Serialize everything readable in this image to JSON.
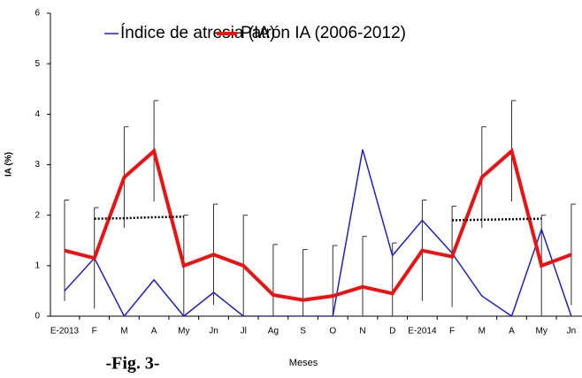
{
  "chart_data": {
    "type": "line",
    "ylabel": "IA (%)",
    "xlabel": "Meses",
    "figure_label": "-Fig. 3-",
    "categories": [
      "E-2013",
      "F",
      "M",
      "A",
      "My",
      "Jn",
      "Jl",
      "Ag",
      "S",
      "O",
      "N",
      "D",
      "E-2014",
      "F",
      "M",
      "A",
      "My",
      "Jn"
    ],
    "series": [
      {
        "name": "Índice de atresia (IA)",
        "color": "#1f1fd0",
        "width": 1.5,
        "values": [
          0.5,
          1.15,
          0,
          0.72,
          0,
          0.47,
          0,
          0,
          0,
          0,
          3.3,
          1.2,
          1.9,
          1.25,
          0.4,
          0,
          1.72,
          0
        ]
      },
      {
        "name": "Patrón IA (2006-2012)",
        "color": "#ee1111",
        "width": 4,
        "values": [
          1.3,
          1.15,
          2.75,
          3.27,
          1.0,
          1.22,
          1.0,
          0.42,
          0.32,
          0.4,
          0.58,
          0.45,
          1.3,
          1.18,
          2.75,
          3.27,
          1.0,
          1.22
        ],
        "errors": [
          1,
          1,
          1,
          1,
          1,
          1,
          1,
          1,
          1,
          1,
          1,
          1,
          1,
          1,
          1,
          1,
          1,
          1
        ]
      }
    ],
    "trend_lines": [
      {
        "color": "#000000",
        "values": [
          null,
          1.93,
          1.94,
          1.96,
          1.97,
          null,
          null,
          null,
          null,
          null,
          null,
          null,
          null,
          null,
          null,
          null,
          null,
          null
        ]
      },
      {
        "color": "#000000",
        "values": [
          null,
          null,
          null,
          null,
          null,
          null,
          null,
          null,
          null,
          null,
          null,
          null,
          null,
          1.9,
          1.91,
          1.92,
          1.93,
          null
        ]
      }
    ],
    "ylim": [
      0,
      6
    ],
    "yticks": [
      0,
      1,
      2,
      3,
      4,
      5,
      6
    ]
  }
}
